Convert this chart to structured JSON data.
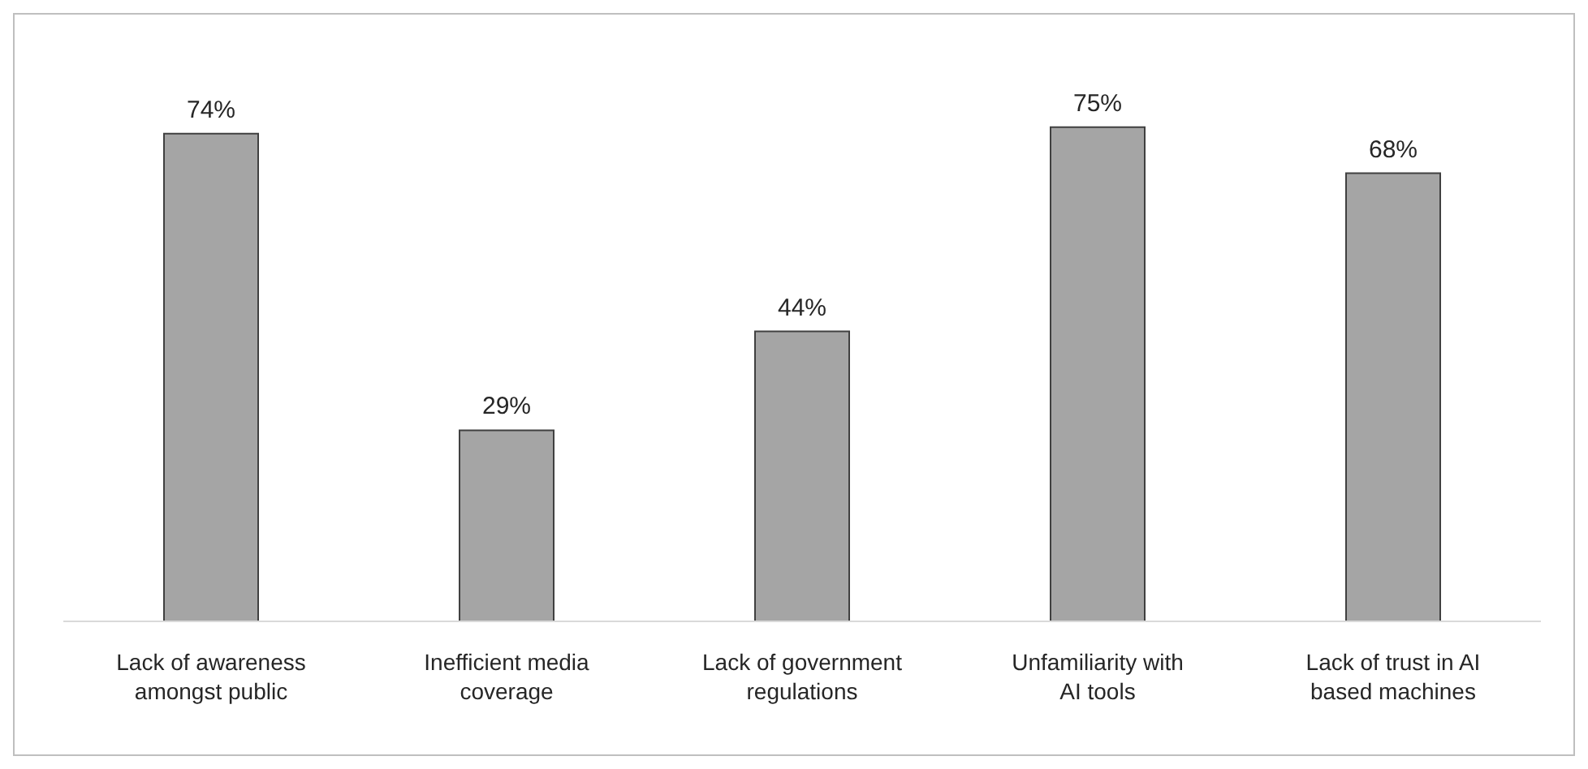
{
  "chart_data": {
    "type": "bar",
    "categories": [
      "Lack of awareness amongst public",
      "Inefficient media coverage",
      "Lack of government regulations",
      "Unfamiliarity with AI tools",
      "Lack of trust in AI based machines"
    ],
    "values": [
      74,
      29,
      44,
      75,
      68
    ],
    "value_labels": [
      "74%",
      "29%",
      "44%",
      "75%",
      "68%"
    ],
    "color": "#a5a5a5",
    "grid": false,
    "legend": false
  }
}
